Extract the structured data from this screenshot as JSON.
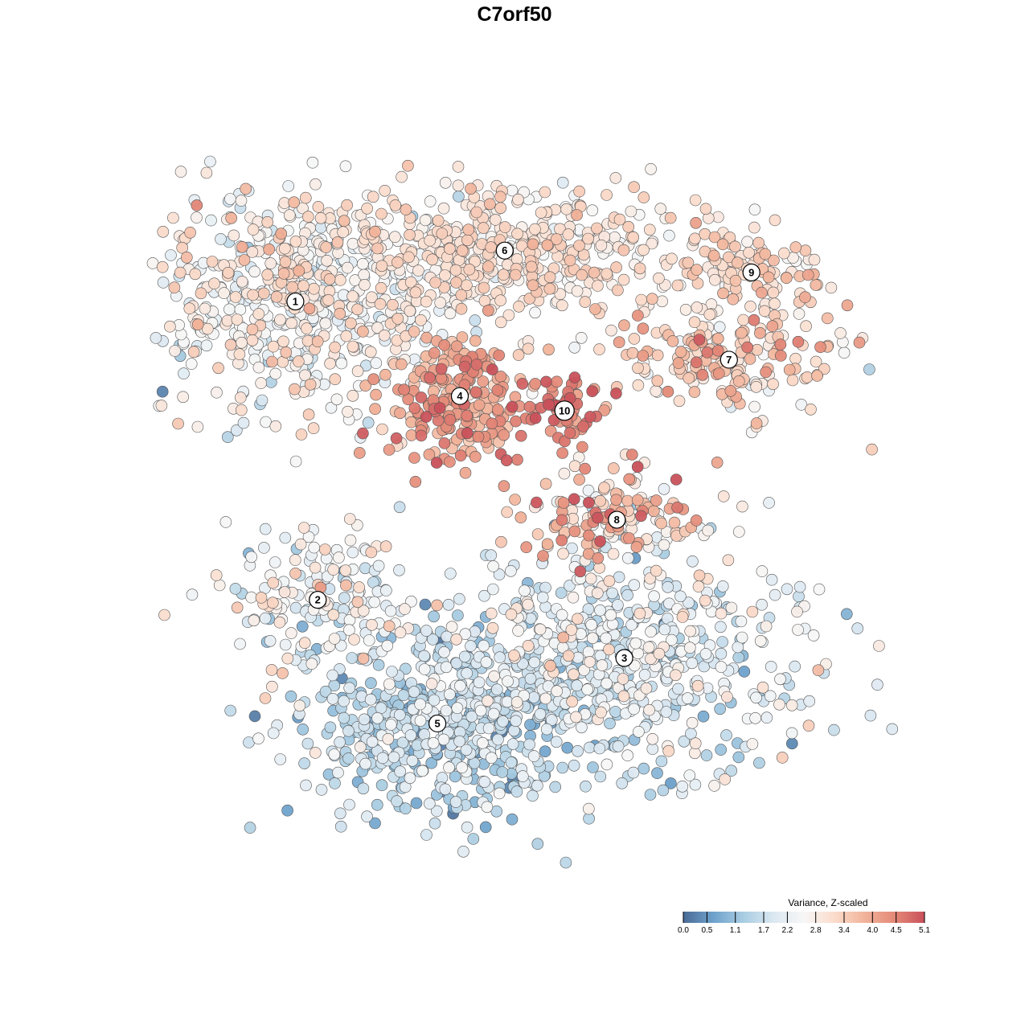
{
  "chart_data": {
    "type": "scatter",
    "title": "C7orf50",
    "legend": {
      "title": "Variance, Z-scaled",
      "placement": "bottom-right",
      "ticks": [
        "0.0",
        "0.5",
        "1.1",
        "1.7",
        "2.2",
        "2.8",
        "3.4",
        "4.0",
        "4.5",
        "5.1"
      ],
      "range": [
        0.0,
        5.1
      ],
      "colors": [
        "#4a6b96",
        "#6ea2cc",
        "#a9cde2",
        "#dbe8f1",
        "#f7f7f7",
        "#fbdccc",
        "#f1b49b",
        "#e48978",
        "#c9515b"
      ]
    },
    "grid": false,
    "axes_visible": false,
    "xlim": [
      -50,
      50
    ],
    "ylim": [
      -50,
      50
    ],
    "clusters": [
      {
        "id": "1",
        "label": "1",
        "x": -32,
        "y": 29,
        "sx": 11,
        "sy": 8,
        "n": 620,
        "mean": 2.6,
        "sd": 0.55
      },
      {
        "id": "6",
        "label": "6",
        "x": -4,
        "y": 36,
        "sx": 13,
        "sy": 4.5,
        "n": 480,
        "mean": 3.0,
        "sd": 0.35
      },
      {
        "id": "9",
        "label": "9",
        "x": 29,
        "y": 33,
        "sx": 5,
        "sy": 3,
        "n": 110,
        "mean": 3.2,
        "sd": 0.35
      },
      {
        "id": "4",
        "label": "4",
        "x": -10,
        "y": 16,
        "sx": 5,
        "sy": 4.5,
        "n": 240,
        "mean": 4.0,
        "sd": 0.5
      },
      {
        "id": "10",
        "label": "10",
        "x": 4,
        "y": 14,
        "sx": 2.5,
        "sy": 2.5,
        "n": 60,
        "mean": 4.6,
        "sd": 0.4
      },
      {
        "id": "7",
        "label": "7",
        "x": 26,
        "y": 21,
        "sx": 8,
        "sy": 4,
        "n": 190,
        "mean": 3.3,
        "sd": 0.6
      },
      {
        "id": "8",
        "label": "8",
        "x": 11,
        "y": -1,
        "sx": 7,
        "sy": 3.5,
        "n": 160,
        "mean": 3.4,
        "sd": 0.9
      },
      {
        "id": "2",
        "label": "2",
        "x": -29,
        "y": -12,
        "sx": 6,
        "sy": 4.5,
        "n": 170,
        "mean": 2.4,
        "sd": 0.6
      },
      {
        "id": "3",
        "label": "3",
        "x": 12,
        "y": -20,
        "sx": 13,
        "sy": 7,
        "n": 600,
        "mean": 2.0,
        "sd": 0.6
      },
      {
        "id": "5",
        "label": "5",
        "x": -13,
        "y": -29,
        "sx": 9,
        "sy": 7,
        "n": 500,
        "mean": 1.6,
        "sd": 0.5
      }
    ]
  }
}
